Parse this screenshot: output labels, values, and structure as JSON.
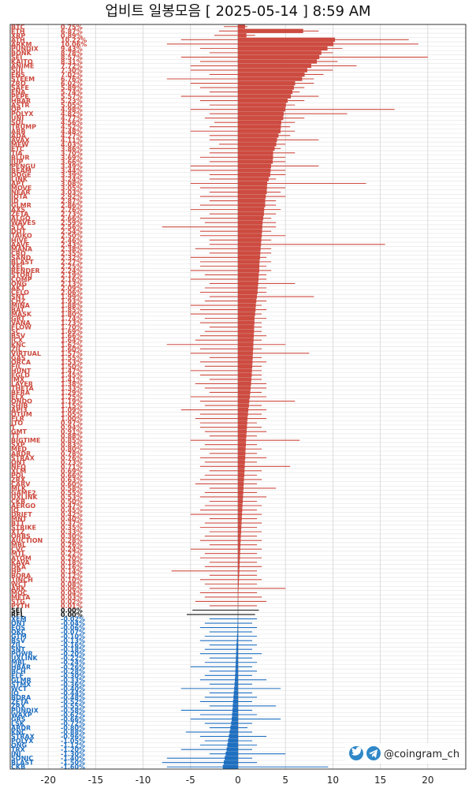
{
  "chart_data": {
    "type": "bar",
    "title": "업비트 일봉모음 [ 2025-05-14 ]  8:59 AM",
    "xlim": [
      -24,
      24
    ],
    "xticks": [
      -20,
      -15,
      -10,
      -5,
      0,
      5,
      10,
      15,
      20
    ],
    "grid": true,
    "colors": {
      "up": "#cd4b40",
      "down": "#1f6fc0",
      "flat": "#111111"
    },
    "rows": [
      {
        "n": "BTC",
        "v": 0.75,
        "lo": -1.5,
        "hi": 1.0
      },
      {
        "n": "ETH",
        "v": 6.87,
        "lo": -2.0,
        "hi": 8.5
      },
      {
        "n": "XRP",
        "v": 0.89,
        "lo": -2.5,
        "hi": 1.8
      },
      {
        "n": "ATH",
        "v": 10.22,
        "lo": -6.0,
        "hi": 18.0
      },
      {
        "n": "ARKM",
        "v": 10.06,
        "lo": -7.5,
        "hi": 19.0
      },
      {
        "n": "PUNDIX",
        "v": 9.43,
        "lo": -4.0,
        "hi": 11.0
      },
      {
        "n": "BONK",
        "v": 8.78,
        "lo": -3.0,
        "hi": 10.0
      },
      {
        "n": "SEI",
        "v": 8.57,
        "lo": -6.0,
        "hi": 20.0
      },
      {
        "n": "KAITO",
        "v": 8.31,
        "lo": -4.0,
        "hi": 10.5
      },
      {
        "n": "ANIME",
        "v": 7.72,
        "lo": -5.0,
        "hi": 12.5
      },
      {
        "n": "SUI",
        "v": 7.3,
        "lo": -5.0,
        "hi": 10.0
      },
      {
        "n": "ENS",
        "v": 7.02,
        "lo": -3.0,
        "hi": 9.0
      },
      {
        "n": "STEEM",
        "v": 6.76,
        "lo": -7.5,
        "hi": 8.0
      },
      {
        "n": "ZRO",
        "v": 6.02,
        "lo": -5.0,
        "hi": 8.0
      },
      {
        "n": "SAFE",
        "v": 5.89,
        "lo": -4.0,
        "hi": 7.0
      },
      {
        "n": "ENA",
        "v": 5.74,
        "lo": -3.0,
        "hi": 6.5
      },
      {
        "n": "PEPE",
        "v": 5.57,
        "lo": -6.0,
        "hi": 8.5
      },
      {
        "n": "HBAR",
        "v": 5.23,
        "lo": -4.0,
        "hi": 7.0
      },
      {
        "n": "ASTR",
        "v": 5.05,
        "lo": -3.0,
        "hi": 6.0
      },
      {
        "n": "OP",
        "v": 4.98,
        "lo": -5.0,
        "hi": 16.5
      },
      {
        "n": "POLYX",
        "v": 4.82,
        "lo": -3.0,
        "hi": 11.5
      },
      {
        "n": "UNI",
        "v": 4.77,
        "lo": -3.5,
        "hi": 7.0
      },
      {
        "n": "SOL",
        "v": 4.56,
        "lo": -2.5,
        "hi": 6.0
      },
      {
        "n": "TRUMP",
        "v": 4.52,
        "lo": -3.0,
        "hi": 5.5
      },
      {
        "n": "ARB",
        "v": 4.48,
        "lo": -5.0,
        "hi": 6.0
      },
      {
        "n": "ADA",
        "v": 4.27,
        "lo": -3.0,
        "hi": 5.5
      },
      {
        "n": "AVAX",
        "v": 4.11,
        "lo": -3.0,
        "hi": 8.5
      },
      {
        "n": "MEW",
        "v": 4.03,
        "lo": -2.0,
        "hi": 5.0
      },
      {
        "n": "ETC",
        "v": 3.86,
        "lo": -3.0,
        "hi": 4.5
      },
      {
        "n": "TIA",
        "v": 3.7,
        "lo": -3.0,
        "hi": 6.0
      },
      {
        "n": "BLUR",
        "v": 3.69,
        "lo": -4.0,
        "hi": 5.0
      },
      {
        "n": "JUP",
        "v": 3.66,
        "lo": -3.0,
        "hi": 5.0
      },
      {
        "n": "PENGU",
        "v": 3.49,
        "lo": -5.0,
        "hi": 8.5
      },
      {
        "n": "BEAM",
        "v": 3.44,
        "lo": -5.0,
        "hi": 5.0
      },
      {
        "n": "DOGE",
        "v": 3.39,
        "lo": -3.0,
        "hi": 5.0
      },
      {
        "n": "LINK",
        "v": 3.24,
        "lo": -3.0,
        "hi": 4.0
      },
      {
        "n": "APT",
        "v": 3.08,
        "lo": -5.0,
        "hi": 13.5
      },
      {
        "n": "MOVE",
        "v": 3.05,
        "lo": -4.0,
        "hi": 5.0
      },
      {
        "n": "NEAR",
        "v": 3.03,
        "lo": -3.0,
        "hi": 4.5
      },
      {
        "n": "IOTA",
        "v": 2.92,
        "lo": -4.0,
        "hi": 5.0
      },
      {
        "n": "ID",
        "v": 2.87,
        "lo": -3.0,
        "hi": 4.0
      },
      {
        "n": "GLMR",
        "v": 2.86,
        "lo": -4.0,
        "hi": 4.0
      },
      {
        "n": "AXS",
        "v": 2.76,
        "lo": -5.0,
        "hi": 4.5
      },
      {
        "n": "ZETA",
        "v": 2.73,
        "lo": -3.0,
        "hi": 4.0
      },
      {
        "n": "ALGO",
        "v": 2.66,
        "lo": -4.0,
        "hi": 3.5
      },
      {
        "n": "WAVES",
        "v": 2.59,
        "lo": -3.5,
        "hi": 4.0
      },
      {
        "n": "STX",
        "v": 2.56,
        "lo": -8.0,
        "hi": 4.0
      },
      {
        "n": "DOT",
        "v": 2.54,
        "lo": -4.0,
        "hi": 3.5
      },
      {
        "n": "TAIKO",
        "v": 2.5,
        "lo": -4.0,
        "hi": 5.0
      },
      {
        "n": "HIVE",
        "v": 2.46,
        "lo": -3.0,
        "hi": 3.5
      },
      {
        "n": "AAVE",
        "v": 2.43,
        "lo": -3.0,
        "hi": 15.5
      },
      {
        "n": "MANA",
        "v": 2.38,
        "lo": -4.5,
        "hi": 3.5
      },
      {
        "n": "CRO",
        "v": 2.35,
        "lo": -3.0,
        "hi": 3.5
      },
      {
        "n": "SAND",
        "v": 2.32,
        "lo": -5.0,
        "hi": 3.0
      },
      {
        "n": "BLAST",
        "v": 2.27,
        "lo": -4.0,
        "hi": 3.5
      },
      {
        "n": "XEC",
        "v": 2.25,
        "lo": -4.0,
        "hi": 3.0
      },
      {
        "n": "RENDER",
        "v": 2.24,
        "lo": -5.0,
        "hi": 3.5
      },
      {
        "n": "STORJ",
        "v": 2.19,
        "lo": -3.5,
        "hi": 3.0
      },
      {
        "n": "COMP",
        "v": 2.16,
        "lo": -5.0,
        "hi": 3.0
      },
      {
        "n": "ONG",
        "v": 2.13,
        "lo": -3.0,
        "hi": 6.0
      },
      {
        "n": "AKT",
        "v": 2.09,
        "lo": -3.5,
        "hi": 3.0
      },
      {
        "n": "CELO",
        "v": 2.06,
        "lo": -4.0,
        "hi": 3.0
      },
      {
        "n": "SNT",
        "v": 1.99,
        "lo": -3.0,
        "hi": 8.0
      },
      {
        "n": "CHZ",
        "v": 1.93,
        "lo": -3.5,
        "hi": 3.0
      },
      {
        "n": "MINA",
        "v": 1.88,
        "lo": -5.0,
        "hi": 2.5
      },
      {
        "n": "BAT",
        "v": 1.85,
        "lo": -4.0,
        "hi": 3.0
      },
      {
        "n": "MASK",
        "v": 1.8,
        "lo": -5.0,
        "hi": 2.5
      },
      {
        "n": "GRT",
        "v": 1.74,
        "lo": -3.5,
        "hi": 3.0
      },
      {
        "n": "VANA",
        "v": 1.73,
        "lo": -4.0,
        "hi": 2.5
      },
      {
        "n": "FLOW",
        "v": 1.7,
        "lo": -3.0,
        "hi": 2.5
      },
      {
        "n": "SC",
        "v": 1.69,
        "lo": -3.5,
        "hi": 2.5
      },
      {
        "n": "BSV",
        "v": 1.66,
        "lo": -4.0,
        "hi": 3.0
      },
      {
        "n": "ICX",
        "v": 1.64,
        "lo": -4.5,
        "hi": 2.5
      },
      {
        "n": "KNC",
        "v": 1.62,
        "lo": -7.5,
        "hi": 5.0
      },
      {
        "n": "ZIL",
        "v": 1.6,
        "lo": -4.0,
        "hi": 2.5
      },
      {
        "n": "VIRTUAL",
        "v": 1.57,
        "lo": -5.0,
        "hi": 7.5
      },
      {
        "n": "GAS",
        "v": 1.55,
        "lo": -3.0,
        "hi": 2.5
      },
      {
        "n": "ORCA",
        "v": 1.53,
        "lo": -4.0,
        "hi": 3.0
      },
      {
        "n": "FIL",
        "v": 1.5,
        "lo": -3.5,
        "hi": 2.5
      },
      {
        "n": "HUNT",
        "v": 1.47,
        "lo": -5.0,
        "hi": 2.5
      },
      {
        "n": "EGLD",
        "v": 1.45,
        "lo": -4.0,
        "hi": 2.5
      },
      {
        "n": "IMX",
        "v": 1.41,
        "lo": -3.0,
        "hi": 2.5
      },
      {
        "n": "LAYER",
        "v": 1.38,
        "lo": -4.5,
        "hi": 3.0
      },
      {
        "n": "THETA",
        "v": 1.33,
        "lo": -3.5,
        "hi": 3.0
      },
      {
        "n": "BERA",
        "v": 1.29,
        "lo": -3.0,
        "hi": 2.5
      },
      {
        "n": "ELX",
        "v": 1.25,
        "lo": -5.0,
        "hi": 3.0
      },
      {
        "n": "ONDO",
        "v": 1.19,
        "lo": -4.0,
        "hi": 6.0
      },
      {
        "n": "SHIB",
        "v": 1.15,
        "lo": -3.5,
        "hi": 2.5
      },
      {
        "n": "API3",
        "v": 1.09,
        "lo": -6.0,
        "hi": 3.0
      },
      {
        "n": "QTUM",
        "v": 1.05,
        "lo": -4.0,
        "hi": 2.5
      },
      {
        "n": "FLR",
        "v": 1.0,
        "lo": -4.5,
        "hi": 3.0
      },
      {
        "n": "JTO",
        "v": 0.97,
        "lo": -4.0,
        "hi": 2.0
      },
      {
        "n": "T",
        "v": 0.94,
        "lo": -4.0,
        "hi": 2.5
      },
      {
        "n": "GMT",
        "v": 0.91,
        "lo": -3.5,
        "hi": 3.0
      },
      {
        "n": "TT",
        "v": 0.88,
        "lo": -3.0,
        "hi": 2.0
      },
      {
        "n": "BIGTIME",
        "v": 0.85,
        "lo": -5.0,
        "hi": 6.5
      },
      {
        "n": "SXP",
        "v": 0.83,
        "lo": -3.5,
        "hi": 2.0
      },
      {
        "n": "MED",
        "v": 0.8,
        "lo": -4.0,
        "hi": 2.5
      },
      {
        "n": "ARDR",
        "v": 0.78,
        "lo": -3.0,
        "hi": 2.0
      },
      {
        "n": "STRAX",
        "v": 0.76,
        "lo": -4.0,
        "hi": 3.0
      },
      {
        "n": "ONT",
        "v": 0.73,
        "lo": -3.5,
        "hi": 2.0
      },
      {
        "n": "NEO",
        "v": 0.71,
        "lo": -4.0,
        "hi": 5.5
      },
      {
        "n": "XLM",
        "v": 0.69,
        "lo": -3.0,
        "hi": 2.5
      },
      {
        "n": "POL",
        "v": 0.66,
        "lo": -3.5,
        "hi": 2.0
      },
      {
        "n": "ZRX",
        "v": 0.63,
        "lo": -4.0,
        "hi": 2.5
      },
      {
        "n": "CARV",
        "v": 0.6,
        "lo": -4.5,
        "hi": 2.0
      },
      {
        "n": "MLK",
        "v": 0.58,
        "lo": -3.0,
        "hi": 4.0
      },
      {
        "n": "GAME2",
        "v": 0.55,
        "lo": -3.5,
        "hi": 2.0
      },
      {
        "n": "UXLINK",
        "v": 0.53,
        "lo": -4.0,
        "hi": 3.0
      },
      {
        "n": "CKB",
        "v": 0.5,
        "lo": -3.0,
        "hi": 2.0
      },
      {
        "n": "AERGO",
        "v": 0.47,
        "lo": -3.5,
        "hi": 2.5
      },
      {
        "n": "IQ",
        "v": 0.45,
        "lo": -4.0,
        "hi": 2.0
      },
      {
        "n": "DRIFT",
        "v": 0.42,
        "lo": -5.0,
        "hi": 2.5
      },
      {
        "n": "MNT",
        "v": 0.4,
        "lo": -3.0,
        "hi": 2.0
      },
      {
        "n": "BTT",
        "v": 0.37,
        "lo": -3.5,
        "hi": 2.5
      },
      {
        "n": "STRIKE",
        "v": 0.35,
        "lo": -4.0,
        "hi": 2.0
      },
      {
        "n": "XTZ",
        "v": 0.33,
        "lo": -3.0,
        "hi": 2.5
      },
      {
        "n": "ORBS",
        "v": 0.3,
        "lo": -3.5,
        "hi": 2.0
      },
      {
        "n": "AUCTION",
        "v": 0.28,
        "lo": -4.0,
        "hi": 2.5
      },
      {
        "n": "MBL",
        "v": 0.26,
        "lo": -3.0,
        "hi": 2.0
      },
      {
        "n": "CVC",
        "v": 0.24,
        "lo": -5.0,
        "hi": 2.5
      },
      {
        "n": "MTL",
        "v": 0.22,
        "lo": -3.5,
        "hi": 2.0
      },
      {
        "n": "ATOM",
        "v": 0.2,
        "lo": -4.0,
        "hi": 2.5
      },
      {
        "n": "KAVA",
        "v": 0.18,
        "lo": -3.0,
        "hi": 2.0
      },
      {
        "n": "DKA",
        "v": 0.16,
        "lo": -3.5,
        "hi": 2.5
      },
      {
        "n": "HP",
        "v": 0.14,
        "lo": -7.0,
        "hi": 2.0
      },
      {
        "n": "BORA",
        "v": 0.12,
        "lo": -3.0,
        "hi": 2.0
      },
      {
        "n": "1INCH",
        "v": 0.1,
        "lo": -4.0,
        "hi": 2.5
      },
      {
        "n": "WCT",
        "v": 0.08,
        "lo": -3.5,
        "hi": 2.0
      },
      {
        "n": "ARK",
        "v": 0.06,
        "lo": -3.0,
        "hi": 5.0
      },
      {
        "n": "MOC",
        "v": 0.04,
        "lo": -4.0,
        "hi": 2.0
      },
      {
        "n": "META",
        "v": 0.03,
        "lo": -3.5,
        "hi": 2.5
      },
      {
        "n": "STG",
        "v": 0.02,
        "lo": -4.5,
        "hi": 3.0
      },
      {
        "n": "PYTH",
        "v": 0.01,
        "lo": -3.0,
        "hi": 2.0
      },
      {
        "n": "SEI",
        "v": 0.0,
        "lo": -4.8,
        "hi": 2.2
      },
      {
        "n": "RFL",
        "v": 0.0,
        "lo": -5.4,
        "hi": 1.8
      },
      {
        "n": "XEM",
        "v": -0.02,
        "lo": -3.0,
        "hi": 2.0
      },
      {
        "n": "ONT",
        "v": -0.04,
        "lo": -3.5,
        "hi": 1.5
      },
      {
        "n": "EOS",
        "v": -0.06,
        "lo": -4.0,
        "hi": 2.0
      },
      {
        "n": "QKC",
        "v": -0.07,
        "lo": -3.0,
        "hi": 1.5
      },
      {
        "n": "GTM",
        "v": -0.1,
        "lo": -3.5,
        "hi": 2.0
      },
      {
        "n": "BSV",
        "v": -0.13,
        "lo": -4.0,
        "hi": 1.5
      },
      {
        "n": "ZIL",
        "v": -0.16,
        "lo": -3.0,
        "hi": 2.0
      },
      {
        "n": "SNT",
        "v": -0.18,
        "lo": -3.5,
        "hi": 1.5
      },
      {
        "n": "POWR",
        "v": -0.2,
        "lo": -4.0,
        "hi": 2.5
      },
      {
        "n": "UXLINK",
        "v": -0.22,
        "lo": -3.0,
        "hi": 1.5
      },
      {
        "n": "MBL",
        "v": -0.24,
        "lo": -3.5,
        "hi": 2.0
      },
      {
        "n": "HBAR",
        "v": -0.26,
        "lo": -5.0,
        "hi": 1.5
      },
      {
        "n": "BCH",
        "v": -0.28,
        "lo": -3.0,
        "hi": 2.0
      },
      {
        "n": "ELF",
        "v": -0.3,
        "lo": -3.5,
        "hi": 1.5
      },
      {
        "n": "GLMR",
        "v": -0.33,
        "lo": -4.0,
        "hi": 3.0
      },
      {
        "n": "STMX",
        "v": -0.36,
        "lo": -3.0,
        "hi": 1.5
      },
      {
        "n": "WCT",
        "v": -0.4,
        "lo": -6.0,
        "hi": 4.5
      },
      {
        "n": "IQ",
        "v": -0.44,
        "lo": -3.0,
        "hi": 1.5
      },
      {
        "n": "BORA",
        "v": -0.48,
        "lo": -3.5,
        "hi": 2.0
      },
      {
        "n": "ZETA",
        "v": -0.52,
        "lo": -4.0,
        "hi": 1.5
      },
      {
        "n": "ZRX",
        "v": -0.55,
        "lo": -3.0,
        "hi": 4.0
      },
      {
        "n": "PUNDIX",
        "v": -0.58,
        "lo": -6.0,
        "hi": 1.5
      },
      {
        "n": "WAXP",
        "v": -0.62,
        "lo": -4.0,
        "hi": 2.0
      },
      {
        "n": "GRS",
        "v": -0.66,
        "lo": -5.0,
        "hi": 4.5
      },
      {
        "n": "LSK",
        "v": -0.72,
        "lo": -3.5,
        "hi": 1.5
      },
      {
        "n": "ARDR",
        "v": -0.8,
        "lo": -3.0,
        "hi": 1.0
      },
      {
        "n": "KNC",
        "v": -0.88,
        "lo": -5.5,
        "hi": 1.5
      },
      {
        "n": "STRAX",
        "v": -0.96,
        "lo": -4.0,
        "hi": 3.0
      },
      {
        "n": "POLYX",
        "v": -1.05,
        "lo": -3.5,
        "hi": 1.5
      },
      {
        "n": "ONG",
        "v": -1.12,
        "lo": -4.0,
        "hi": 2.0
      },
      {
        "n": "TRX",
        "v": -1.2,
        "lo": -6.0,
        "hi": 1.5
      },
      {
        "n": "INJ",
        "v": -1.3,
        "lo": -3.0,
        "hi": 5.0
      },
      {
        "n": "SONIC",
        "v": -1.4,
        "lo": -7.5,
        "hi": 1.5
      },
      {
        "n": "BLAST",
        "v": -1.5,
        "lo": -8.0,
        "hi": 2.0
      },
      {
        "n": "CKB",
        "v": -1.6,
        "lo": -7.5,
        "hi": 9.5
      }
    ]
  },
  "brand": {
    "handle": "@coingram_ch",
    "twitter_icon": "twitter-bird-icon",
    "telegram_icon": "telegram-plane-icon"
  }
}
